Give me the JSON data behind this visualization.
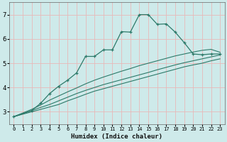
{
  "xlabel": "Humidex (Indice chaleur)",
  "bg_color": "#ceeaea",
  "grid_color": "#e8b8b8",
  "line_color": "#2d7a6a",
  "xlim": [
    -0.5,
    23.5
  ],
  "ylim": [
    2.5,
    7.5
  ],
  "xticks": [
    0,
    1,
    2,
    3,
    4,
    5,
    6,
    7,
    8,
    9,
    10,
    11,
    12,
    13,
    14,
    15,
    16,
    17,
    18,
    19,
    20,
    21,
    22,
    23
  ],
  "yticks": [
    3,
    4,
    5,
    6,
    7
  ],
  "series": [
    {
      "x": [
        0,
        1,
        2,
        3,
        4,
        5,
        6,
        7,
        8,
        9,
        10,
        11,
        12,
        13,
        14,
        15,
        16,
        17,
        18,
        19,
        20,
        21,
        22,
        23
      ],
      "y": [
        2.8,
        2.9,
        3.0,
        3.1,
        3.2,
        3.3,
        3.45,
        3.58,
        3.72,
        3.85,
        3.95,
        4.05,
        4.15,
        4.25,
        4.35,
        4.45,
        4.55,
        4.65,
        4.75,
        4.85,
        4.93,
        5.0,
        5.1,
        5.18
      ],
      "marker": false
    },
    {
      "x": [
        0,
        1,
        2,
        3,
        4,
        5,
        6,
        7,
        8,
        9,
        10,
        11,
        12,
        13,
        14,
        15,
        16,
        17,
        18,
        19,
        20,
        21,
        22,
        23
      ],
      "y": [
        2.8,
        2.92,
        3.05,
        3.18,
        3.3,
        3.45,
        3.6,
        3.75,
        3.88,
        4.0,
        4.12,
        4.22,
        4.32,
        4.42,
        4.52,
        4.62,
        4.73,
        4.83,
        4.93,
        5.02,
        5.1,
        5.18,
        5.26,
        5.34
      ],
      "marker": false
    },
    {
      "x": [
        0,
        1,
        2,
        3,
        4,
        5,
        6,
        7,
        8,
        9,
        10,
        11,
        12,
        13,
        14,
        15,
        16,
        17,
        18,
        19,
        20,
        21,
        22,
        23
      ],
      "y": [
        2.8,
        2.95,
        3.1,
        3.28,
        3.48,
        3.65,
        3.82,
        3.98,
        4.15,
        4.3,
        4.43,
        4.55,
        4.67,
        4.78,
        4.9,
        5.0,
        5.1,
        5.2,
        5.3,
        5.38,
        5.46,
        5.53,
        5.57,
        5.45
      ],
      "marker": false
    },
    {
      "x": [
        0,
        2,
        3,
        4,
        5,
        6,
        7,
        8,
        9,
        10,
        11,
        12,
        13,
        14,
        15,
        16,
        17,
        18,
        19,
        20,
        21,
        22,
        23
      ],
      "y": [
        2.8,
        3.05,
        3.35,
        3.75,
        4.05,
        4.3,
        4.6,
        5.28,
        5.28,
        5.55,
        5.55,
        6.3,
        6.28,
        7.0,
        7.0,
        6.6,
        6.62,
        6.28,
        5.85,
        5.38,
        5.35,
        5.38,
        5.38
      ],
      "marker": true
    }
  ]
}
